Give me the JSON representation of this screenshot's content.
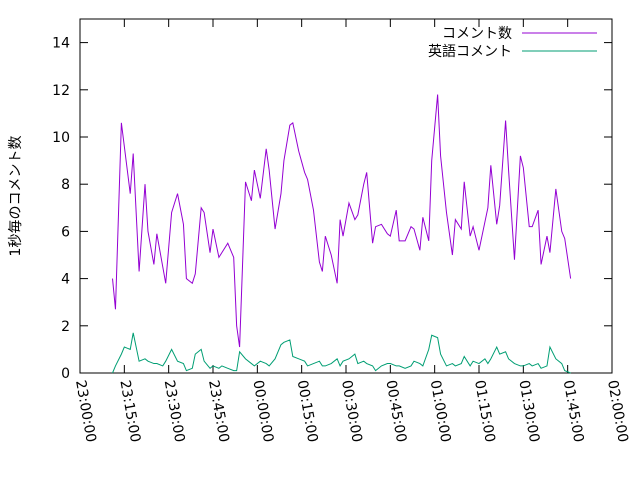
{
  "chart_data": {
    "type": "line",
    "y_label": "1秒毎のコメント数",
    "legend": "top right",
    "xlim": [
      0,
      180
    ],
    "ylim": [
      0,
      15
    ],
    "yticks": [
      0,
      2,
      4,
      6,
      8,
      10,
      12,
      14
    ],
    "xticks": [
      {
        "value": 0,
        "label": "23:00:00"
      },
      {
        "value": 15,
        "label": "23:15:00"
      },
      {
        "value": 30,
        "label": "23:30:00"
      },
      {
        "value": 45,
        "label": "23:45:00"
      },
      {
        "value": 60,
        "label": "00:00:00"
      },
      {
        "value": 75,
        "label": "00:15:00"
      },
      {
        "value": 90,
        "label": "00:30:00"
      },
      {
        "value": 105,
        "label": "00:45:00"
      },
      {
        "value": 120,
        "label": "01:00:00"
      },
      {
        "value": 135,
        "label": "01:15:00"
      },
      {
        "value": 150,
        "label": "01:30:00"
      },
      {
        "value": 165,
        "label": "01:45:00"
      },
      {
        "value": 180,
        "label": "02:00:00"
      }
    ],
    "x": [
      11,
      12,
      14,
      15,
      17,
      18,
      20,
      22,
      23,
      25,
      26,
      28,
      29,
      31,
      33,
      35,
      36,
      38,
      39,
      41,
      42,
      44,
      45,
      47,
      48,
      50,
      52,
      53,
      54,
      56,
      58,
      59,
      61,
      63,
      64,
      66,
      68,
      69,
      71,
      72,
      74,
      76,
      77,
      79,
      81,
      82,
      83,
      85,
      87,
      88,
      89,
      91,
      93,
      94,
      96,
      97,
      99,
      100,
      102,
      104,
      105,
      107,
      108,
      110,
      112,
      113,
      115,
      116,
      118,
      119,
      121,
      122,
      124,
      126,
      127,
      129,
      130,
      132,
      133,
      135,
      137,
      138,
      139,
      141,
      142,
      144,
      145,
      147,
      149,
      150,
      152,
      153,
      155,
      156,
      158,
      159,
      161,
      163,
      164,
      166
    ],
    "series": [
      {
        "name": "コメント数",
        "color": "#9400d3",
        "values": [
          4.0,
          2.7,
          10.6,
          9.6,
          7.6,
          9.3,
          4.3,
          8.0,
          6.0,
          4.6,
          5.9,
          4.5,
          3.8,
          6.8,
          7.6,
          6.3,
          4.0,
          3.8,
          4.2,
          7.0,
          6.8,
          5.1,
          6.1,
          4.9,
          5.1,
          5.5,
          4.9,
          2.0,
          1.1,
          8.1,
          7.3,
          8.6,
          7.4,
          9.5,
          8.6,
          6.1,
          7.6,
          9.0,
          10.5,
          10.6,
          9.4,
          8.5,
          8.2,
          6.9,
          4.7,
          4.3,
          5.8,
          5.0,
          3.8,
          6.5,
          5.8,
          7.2,
          6.5,
          6.7,
          8.0,
          8.5,
          5.5,
          6.2,
          6.3,
          5.9,
          5.8,
          6.9,
          5.6,
          5.6,
          6.2,
          6.1,
          5.2,
          6.6,
          5.6,
          9.0,
          11.8,
          9.2,
          6.8,
          5.0,
          6.5,
          6.1,
          8.1,
          5.8,
          6.2,
          5.2,
          6.4,
          7.0,
          8.8,
          6.3,
          7.1,
          10.7,
          8.6,
          4.8,
          9.2,
          8.7,
          6.2,
          6.2,
          6.9,
          4.6,
          5.8,
          5.1,
          7.8,
          6.0,
          5.7,
          4.0
        ]
      },
      {
        "name": "英語コメント",
        "color": "#009e73",
        "values": [
          0.0,
          0.3,
          0.8,
          1.1,
          1.0,
          1.7,
          0.5,
          0.6,
          0.5,
          0.4,
          0.4,
          0.3,
          0.5,
          1.0,
          0.5,
          0.4,
          0.1,
          0.2,
          0.8,
          1.0,
          0.5,
          0.2,
          0.3,
          0.2,
          0.3,
          0.2,
          0.1,
          0.1,
          0.9,
          0.6,
          0.4,
          0.3,
          0.5,
          0.4,
          0.3,
          0.6,
          1.2,
          1.3,
          1.4,
          0.7,
          0.6,
          0.5,
          0.3,
          0.4,
          0.5,
          0.3,
          0.3,
          0.4,
          0.6,
          0.3,
          0.5,
          0.6,
          0.8,
          0.4,
          0.5,
          0.4,
          0.3,
          0.1,
          0.3,
          0.4,
          0.4,
          0.3,
          0.3,
          0.2,
          0.3,
          0.5,
          0.4,
          0.3,
          1.0,
          1.6,
          1.5,
          0.8,
          0.3,
          0.4,
          0.3,
          0.4,
          0.7,
          0.3,
          0.5,
          0.4,
          0.6,
          0.4,
          0.6,
          1.1,
          0.8,
          0.9,
          0.6,
          0.4,
          0.3,
          0.3,
          0.4,
          0.3,
          0.4,
          0.2,
          0.3,
          1.1,
          0.6,
          0.4,
          0.1,
          0.0
        ]
      }
    ]
  }
}
